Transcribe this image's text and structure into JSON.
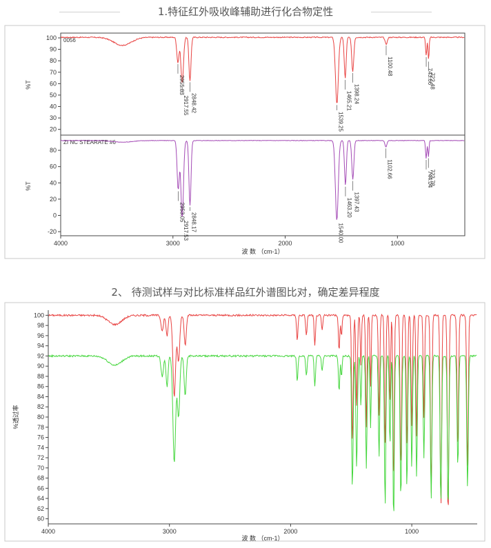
{
  "section1": {
    "title": "1.特征红外吸收峰辅助进行化合物定性"
  },
  "section2": {
    "title": "2、 待测试样与对比标准样品红外谱图比对，确定差异程度"
  },
  "colors": {
    "red": "#e8403f",
    "purple": "#a349b5",
    "green": "#44d63c",
    "axis": "#444444"
  },
  "chart_data": [
    {
      "type": "line",
      "title": "",
      "xlabel": "波 数 （cm-1）",
      "xlim": [
        4000,
        400
      ],
      "xticks": [
        4000,
        3000,
        2000,
        1000
      ],
      "panels": [
        {
          "name": "0056",
          "ylabel": "%T",
          "ylim": [
            15,
            103
          ],
          "yticks": [
            100,
            90,
            80,
            70,
            60,
            50,
            40,
            30,
            20
          ],
          "color": "red",
          "baseline": 100.5,
          "peaks": [
            {
              "x": 3450,
              "d": 7,
              "w": 110
            },
            {
              "x": 2955.83,
              "d": 22,
              "w": 14
            },
            {
              "x": 2917.55,
              "d": 40,
              "w": 16
            },
            {
              "x": 2848.42,
              "d": 38,
              "w": 13
            },
            {
              "x": 1539.25,
              "d": 58,
              "w": 18
            },
            {
              "x": 1465.21,
              "d": 36,
              "w": 12
            },
            {
              "x": 1398.24,
              "d": 30,
              "w": 13
            },
            {
              "x": 1100.48,
              "d": 6,
              "w": 14
            },
            {
              "x": 743.66,
              "d": 16,
              "w": 8
            },
            {
              "x": 722.48,
              "d": 20,
              "w": 7
            }
          ],
          "labels": [
            {
              "x": 2955.83,
              "text": "2955.83"
            },
            {
              "x": 2917.55,
              "text": "2917.55"
            },
            {
              "x": 2848.42,
              "text": "2848.42"
            },
            {
              "x": 1539.25,
              "text": "1539.25"
            },
            {
              "x": 1465.21,
              "text": "1465.21"
            },
            {
              "x": 1398.24,
              "text": "1398.24"
            },
            {
              "x": 1100.48,
              "text": "1100.48"
            },
            {
              "x": 743.66,
              "text": "743.66"
            },
            {
              "x": 722.48,
              "text": "722.48"
            }
          ]
        },
        {
          "name": "ZI NC STEARATE #6",
          "ylabel": "%T",
          "ylim": [
            -25,
            97
          ],
          "yticks": [
            80,
            60,
            40,
            20,
            0,
            -20
          ],
          "color": "purple",
          "baseline": 92,
          "peaks": [
            {
              "x": 3450,
              "d": 2,
              "w": 120
            },
            {
              "x": 2953.05,
              "d": 60,
              "w": 14
            },
            {
              "x": 2917.53,
              "d": 95,
              "w": 16
            },
            {
              "x": 2848.17,
              "d": 80,
              "w": 13
            },
            {
              "x": 1540.0,
              "d": 98,
              "w": 18
            },
            {
              "x": 1463.2,
              "d": 55,
              "w": 12
            },
            {
              "x": 1397.43,
              "d": 48,
              "w": 13
            },
            {
              "x": 1102.66,
              "d": 8,
              "w": 12
            },
            {
              "x": 744.04,
              "d": 22,
              "w": 8
            },
            {
              "x": 723.78,
              "d": 20,
              "w": 7
            }
          ],
          "labels": [
            {
              "x": 2953.05,
              "text": "2953.05"
            },
            {
              "x": 2917.53,
              "text": "2917.53"
            },
            {
              "x": 2848.17,
              "text": "2848.17"
            },
            {
              "x": 1540.0,
              "text": "1540.00"
            },
            {
              "x": 1463.2,
              "text": "1463.20"
            },
            {
              "x": 1397.43,
              "text": "1397.43"
            },
            {
              "x": 1102.66,
              "text": "1102.66"
            },
            {
              "x": 744.04,
              "text": "744.04"
            },
            {
              "x": 723.78,
              "text": "723.78"
            }
          ]
        }
      ]
    },
    {
      "type": "line",
      "title": "",
      "xlabel": "波 数 （cm-1）",
      "ylabel": "%透过率",
      "xlim": [
        4000,
        460
      ],
      "ylim": [
        59,
        101
      ],
      "xticks": [
        4000,
        3000,
        2000,
        1000
      ],
      "yticks": [
        100,
        98,
        96,
        94,
        92,
        90,
        88,
        86,
        84,
        82,
        80,
        78,
        76,
        74,
        72,
        70,
        68,
        66,
        64,
        62,
        60
      ],
      "series": [
        {
          "color": "red",
          "baseline": 100,
          "peaks": [
            {
              "x": 3450,
              "d": 1.8,
              "w": 80
            },
            {
              "x": 3060,
              "d": 3,
              "w": 14
            },
            {
              "x": 3020,
              "d": 4,
              "w": 12
            },
            {
              "x": 2960,
              "d": 16,
              "w": 16
            },
            {
              "x": 2925,
              "d": 9,
              "w": 14
            },
            {
              "x": 2870,
              "d": 6,
              "w": 12
            },
            {
              "x": 1945,
              "d": 5,
              "w": 8
            },
            {
              "x": 1870,
              "d": 4,
              "w": 8
            },
            {
              "x": 1800,
              "d": 6,
              "w": 8
            },
            {
              "x": 1740,
              "d": 3,
              "w": 8
            },
            {
              "x": 1600,
              "d": 7,
              "w": 8
            },
            {
              "x": 1580,
              "d": 4,
              "w": 7
            },
            {
              "x": 1490,
              "d": 25,
              "w": 9
            },
            {
              "x": 1455,
              "d": 18,
              "w": 9
            },
            {
              "x": 1420,
              "d": 10,
              "w": 7
            },
            {
              "x": 1375,
              "d": 22,
              "w": 8
            },
            {
              "x": 1340,
              "d": 14,
              "w": 7
            },
            {
              "x": 1270,
              "d": 20,
              "w": 8
            },
            {
              "x": 1220,
              "d": 26,
              "w": 8
            },
            {
              "x": 1180,
              "d": 18,
              "w": 7
            },
            {
              "x": 1150,
              "d": 33,
              "w": 8
            },
            {
              "x": 1090,
              "d": 30,
              "w": 9
            },
            {
              "x": 1040,
              "d": 26,
              "w": 8
            },
            {
              "x": 1000,
              "d": 22,
              "w": 8
            },
            {
              "x": 960,
              "d": 24,
              "w": 8
            },
            {
              "x": 900,
              "d": 20,
              "w": 8
            },
            {
              "x": 840,
              "d": 35,
              "w": 9
            },
            {
              "x": 760,
              "d": 38,
              "w": 9
            },
            {
              "x": 700,
              "d": 40,
              "w": 9
            },
            {
              "x": 620,
              "d": 26,
              "w": 9
            },
            {
              "x": 540,
              "d": 30,
              "w": 9
            }
          ]
        },
        {
          "color": "green",
          "baseline": 92,
          "peaks": [
            {
              "x": 3450,
              "d": 1.8,
              "w": 80
            },
            {
              "x": 3060,
              "d": 4,
              "w": 14
            },
            {
              "x": 3020,
              "d": 6,
              "w": 12
            },
            {
              "x": 2960,
              "d": 21,
              "w": 16
            },
            {
              "x": 2925,
              "d": 12,
              "w": 14
            },
            {
              "x": 2870,
              "d": 8,
              "w": 12
            },
            {
              "x": 1945,
              "d": 5,
              "w": 8
            },
            {
              "x": 1870,
              "d": 4,
              "w": 8
            },
            {
              "x": 1800,
              "d": 6,
              "w": 8
            },
            {
              "x": 1740,
              "d": 3,
              "w": 8
            },
            {
              "x": 1600,
              "d": 7,
              "w": 8
            },
            {
              "x": 1580,
              "d": 4,
              "w": 7
            },
            {
              "x": 1490,
              "d": 26,
              "w": 9
            },
            {
              "x": 1455,
              "d": 22,
              "w": 9
            },
            {
              "x": 1420,
              "d": 10,
              "w": 7
            },
            {
              "x": 1375,
              "d": 22,
              "w": 8
            },
            {
              "x": 1340,
              "d": 14,
              "w": 7
            },
            {
              "x": 1270,
              "d": 20,
              "w": 8
            },
            {
              "x": 1220,
              "d": 30,
              "w": 8
            },
            {
              "x": 1180,
              "d": 18,
              "w": 7
            },
            {
              "x": 1150,
              "d": 33,
              "w": 8
            },
            {
              "x": 1090,
              "d": 28,
              "w": 9
            },
            {
              "x": 1040,
              "d": 26,
              "w": 8
            },
            {
              "x": 1000,
              "d": 22,
              "w": 8
            },
            {
              "x": 960,
              "d": 24,
              "w": 8
            },
            {
              "x": 900,
              "d": 20,
              "w": 8
            },
            {
              "x": 840,
              "d": 28,
              "w": 9
            },
            {
              "x": 760,
              "d": 29,
              "w": 9
            },
            {
              "x": 700,
              "d": 30,
              "w": 9
            },
            {
              "x": 620,
              "d": 22,
              "w": 9
            },
            {
              "x": 540,
              "d": 26,
              "w": 9
            }
          ]
        }
      ]
    }
  ]
}
